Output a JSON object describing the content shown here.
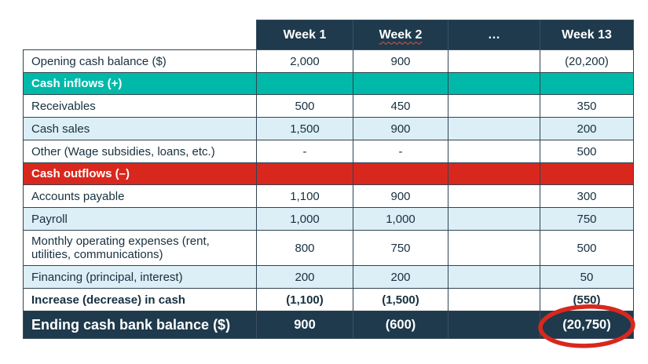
{
  "colors": {
    "navy": "#1e3a4c",
    "teal": "#00b9a9",
    "red": "#d8281e",
    "light_blue": "#dceef6",
    "border": "#314452",
    "ink": "#17303f",
    "annotation_red": "#d8281e"
  },
  "chart_data": {
    "type": "table",
    "columns": [
      {
        "label": "Week 1",
        "squiggle": false
      },
      {
        "label": "Week 2",
        "squiggle": true
      },
      {
        "label": "…",
        "squiggle": false
      },
      {
        "label": "Week 13",
        "squiggle": false
      }
    ],
    "rows": [
      {
        "label": "Opening cash balance ($)",
        "kind": "plain",
        "values": [
          "2,000",
          "900",
          "",
          "(20,200)"
        ]
      },
      {
        "label": "Cash inflows (+)",
        "kind": "inflow",
        "values": [
          "",
          "",
          "",
          ""
        ]
      },
      {
        "label": "Receivables",
        "kind": "plain",
        "values": [
          "500",
          "450",
          "",
          "350"
        ]
      },
      {
        "label": "Cash sales",
        "kind": "alt",
        "values": [
          "1,500",
          "900",
          "",
          "200"
        ]
      },
      {
        "label": "Other (Wage subsidies, loans, etc.)",
        "kind": "plain",
        "values": [
          "-",
          "-",
          "",
          "500"
        ]
      },
      {
        "label": "Cash outflows (–)",
        "kind": "outflow",
        "values": [
          "",
          "",
          "",
          ""
        ]
      },
      {
        "label": "Accounts payable",
        "kind": "plain",
        "values": [
          "1,100",
          "900",
          "",
          "300"
        ]
      },
      {
        "label": "Payroll",
        "kind": "alt",
        "values": [
          "1,000",
          "1,000",
          "",
          "750"
        ]
      },
      {
        "label": "Monthly operating expenses (rent, utilities, communications)",
        "kind": "plain",
        "values": [
          "800",
          "750",
          "",
          "500"
        ]
      },
      {
        "label": "Financing (principal, interest)",
        "kind": "alt",
        "values": [
          "200",
          "200",
          "",
          "50"
        ]
      },
      {
        "label": "Increase (decrease) in cash",
        "kind": "total",
        "values": [
          "(1,100)",
          "(1,500)",
          "",
          "(550)"
        ]
      },
      {
        "label": "Ending cash bank balance ($)",
        "kind": "footer",
        "values": [
          "900",
          "(600)",
          "",
          "(20,750)"
        ]
      }
    ]
  },
  "annotation": {
    "shape": "ellipse",
    "color": "#d8281e",
    "circled_value": "(20,750)",
    "target": "Week 13 ending cash bank balance"
  }
}
